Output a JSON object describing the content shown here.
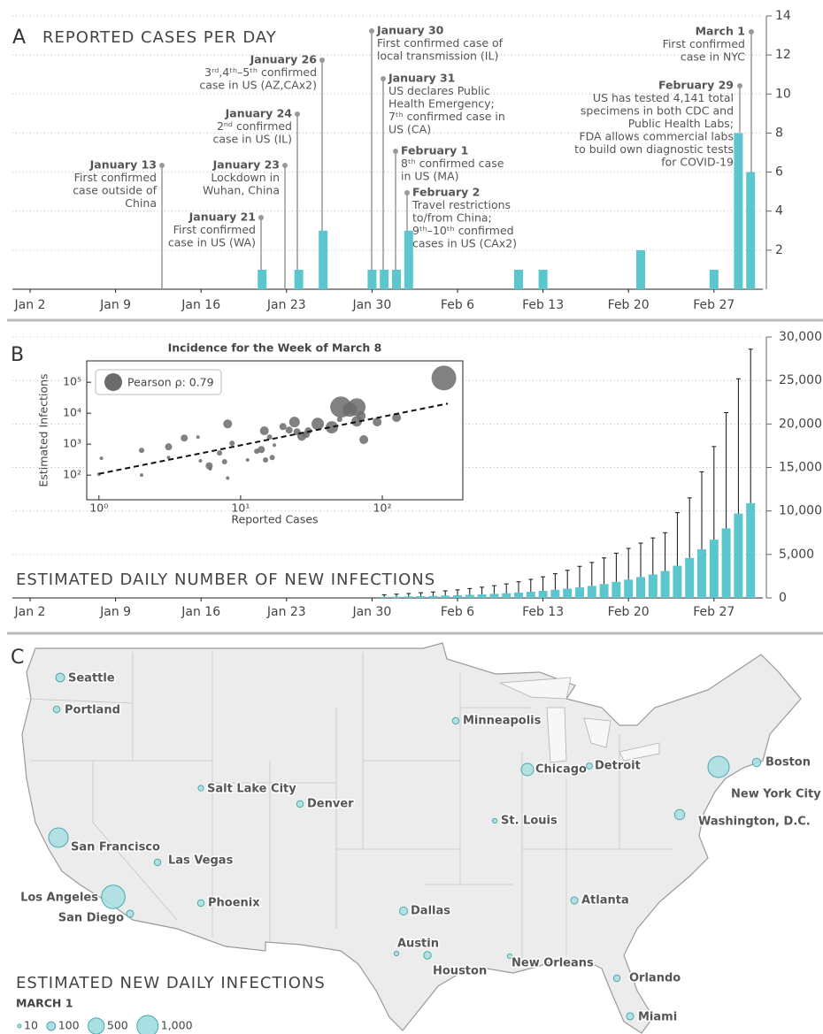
{
  "chart_data": [
    {
      "type": "bar",
      "panel": "A",
      "title": "REPORTED CASES PER DAY",
      "categories": [
        "Jan 2",
        null,
        null,
        null,
        null,
        null,
        null,
        "Jan 9",
        null,
        null,
        null,
        null,
        null,
        null,
        "Jan 16",
        null,
        null,
        null,
        null,
        null,
        null,
        "Jan 23",
        null,
        null,
        null,
        null,
        null,
        null,
        "Jan 30",
        null,
        null,
        null,
        null,
        null,
        null,
        "Feb 6",
        null,
        null,
        null,
        null,
        null,
        null,
        "Feb 13",
        null,
        null,
        null,
        null,
        null,
        null,
        "Feb 20",
        null,
        null,
        null,
        null,
        null,
        null,
        "Feb 27",
        null,
        null,
        null
      ],
      "values": [
        0,
        0,
        0,
        0,
        0,
        0,
        0,
        0,
        0,
        0,
        0,
        0,
        0,
        0,
        0,
        0,
        0,
        0,
        0,
        1,
        0,
        0,
        1,
        0,
        3,
        0,
        0,
        0,
        1,
        1,
        1,
        3,
        0,
        0,
        0,
        0,
        0,
        0,
        0,
        0,
        1,
        0,
        1,
        0,
        0,
        0,
        0,
        0,
        0,
        0,
        2,
        0,
        0,
        0,
        0,
        0,
        1,
        0,
        8,
        6
      ],
      "color": "#5cc6cf",
      "ylim": [
        0,
        14
      ],
      "yticks": [
        2,
        4,
        6,
        8,
        10,
        12,
        14
      ],
      "grid": true,
      "annotations": [
        {
          "title": "January 13",
          "lines": [
            "First confirmed",
            "case outside of",
            "China"
          ]
        },
        {
          "title": "January 21",
          "lines": [
            "First confirmed",
            "case in US (WA)"
          ]
        },
        {
          "title": "January 23",
          "lines": [
            "Lockdown in",
            "Wuhan, China"
          ]
        },
        {
          "title": "January 24",
          "lines": [
            "2ⁿᵈ confirmed",
            "case in US (IL)"
          ]
        },
        {
          "title": "January 26",
          "lines": [
            "3ʳᵈ,4ᵗʰ–5ᵗʰ confirmed",
            "case in US (AZ,CAx2)"
          ]
        },
        {
          "title": "January 30",
          "lines": [
            "First confirmed case of",
            "local transmission (IL)"
          ]
        },
        {
          "title": "January 31",
          "lines": [
            "US declares Public",
            "Health Emergency;",
            "7ᵗʰ confirmed case in",
            "US (CA)"
          ]
        },
        {
          "title": "February 1",
          "lines": [
            "8ᵗʰ confirmed case",
            "in US (MA)"
          ]
        },
        {
          "title": "February 2",
          "lines": [
            "Travel restrictions",
            "to/from China;",
            "9ᵗʰ–10ᵗʰ confirmed",
            "cases in US (CAx2)"
          ]
        },
        {
          "title": "March 1",
          "lines": [
            "First confirmed",
            "case in NYC"
          ]
        },
        {
          "title": "February 29",
          "lines": [
            "US has tested 4,141 total",
            "specimens in both CDC and",
            "Public Health Labs;",
            "FDA allows commercial labs",
            "to build own diagnostic tests",
            "for COVID-19"
          ]
        }
      ]
    },
    {
      "type": "bar",
      "panel": "B",
      "title": "ESTIMATED DAILY NUMBER OF NEW INFECTIONS",
      "categories": [
        "Jan 2",
        null,
        null,
        null,
        null,
        null,
        null,
        "Jan 9",
        null,
        null,
        null,
        null,
        null,
        null,
        "Jan 16",
        null,
        null,
        null,
        null,
        null,
        null,
        "Jan 23",
        null,
        null,
        null,
        null,
        null,
        null,
        "Jan 30",
        null,
        null,
        null,
        null,
        null,
        null,
        "Feb 6",
        null,
        null,
        null,
        null,
        null,
        null,
        "Feb 13",
        null,
        null,
        null,
        null,
        null,
        null,
        "Feb 20",
        null,
        null,
        null,
        null,
        null,
        null,
        "Feb 27",
        null,
        null,
        null
      ],
      "values": [
        null,
        null,
        null,
        null,
        null,
        null,
        null,
        null,
        null,
        null,
        null,
        null,
        null,
        null,
        null,
        null,
        null,
        null,
        null,
        null,
        null,
        null,
        null,
        null,
        null,
        null,
        null,
        null,
        null,
        120,
        140,
        170,
        200,
        230,
        270,
        310,
        360,
        410,
        470,
        540,
        620,
        710,
        810,
        930,
        1060,
        1210,
        1380,
        1600,
        1850,
        2100,
        2400,
        2700,
        3100,
        3700,
        4600,
        5600,
        6700,
        8000,
        9700,
        10900
      ],
      "errors": [
        null,
        null,
        null,
        null,
        null,
        null,
        null,
        null,
        null,
        null,
        null,
        null,
        null,
        null,
        null,
        null,
        null,
        null,
        null,
        null,
        null,
        null,
        null,
        null,
        null,
        null,
        null,
        null,
        null,
        250,
        290,
        340,
        400,
        460,
        540,
        620,
        720,
        820,
        940,
        1080,
        1240,
        1420,
        1620,
        1860,
        2120,
        2420,
        2700,
        3000,
        3300,
        3600,
        3900,
        4200,
        4400,
        6100,
        6900,
        8900,
        10700,
        13300,
        15500,
        17700
      ],
      "color": "#5cc6cf",
      "ylim": [
        0,
        30000
      ],
      "yticks": [
        0,
        {
          "value": 5000,
          "label": "5,000"
        },
        {
          "value": 10000,
          "label": "10,000"
        },
        {
          "value": 15000,
          "label": "15,000"
        },
        {
          "value": 20000,
          "label": "20,000"
        },
        {
          "value": 25000,
          "label": "25,000"
        },
        {
          "value": 30000,
          "label": "30,000"
        }
      ],
      "grid": true
    },
    {
      "type": "scatter",
      "title": "Incidence for the Week of March 8",
      "x_label": "Reported Cases",
      "y_label": "Estimated Infections",
      "log_x": true,
      "log_y": true,
      "xlim": [
        0.82,
        370
      ],
      "ylim": [
        16,
        490000
      ],
      "xticks": [
        {
          "value": 1,
          "label": "10⁰"
        },
        {
          "value": 10,
          "label": "10¹"
        },
        {
          "value": 100,
          "label": "10²"
        }
      ],
      "yticks": [
        {
          "value": 100,
          "label": "10²"
        },
        {
          "value": 1000,
          "label": "10³"
        },
        {
          "value": 10000,
          "label": "10⁴"
        },
        {
          "value": 100000,
          "label": "10⁵"
        }
      ],
      "x": [
        1.04,
        1,
        2,
        2,
        3.1,
        3.1,
        4,
        5,
        5.2,
        6,
        6.1,
        7.1,
        7.7,
        8.1,
        8.1,
        8.7,
        11.2,
        13,
        14,
        14.7,
        15,
        16,
        16.7,
        17.3,
        19.9,
        22,
        24,
        25,
        27,
        29,
        30,
        35,
        44,
        50,
        51,
        59,
        66,
        66,
        71,
        74,
        92,
        126,
        272
      ],
      "y": [
        350,
        107,
        630,
        100,
        820,
        370,
        1580,
        1700,
        290,
        200,
        160,
        520,
        270,
        4500,
        80,
        1070,
        310,
        590,
        670,
        2700,
        310,
        1700,
        370,
        930,
        3700,
        2850,
        5200,
        2500,
        1800,
        2050,
        2700,
        4500,
        3500,
        6300,
        15800,
        13000,
        15800,
        5500,
        8200,
        1400,
        5200,
        7200,
        137000
      ],
      "sizes": [
        2,
        2,
        3,
        2,
        4,
        2,
        4,
        2,
        2,
        4,
        2,
        3,
        3,
        5,
        2,
        3,
        2,
        3,
        4,
        5,
        3,
        3,
        3,
        2,
        4,
        4,
        6,
        4,
        5,
        4,
        4,
        7,
        7,
        3,
        12,
        8,
        10,
        6,
        5,
        5,
        5,
        5,
        14
      ],
      "color": "#6b6b6b",
      "legend_label": "Pearson ρ: 0.79",
      "legend_position": "upper left",
      "trend": {
        "x": [
          1,
          290
        ],
        "y": [
          110,
          20500
        ]
      }
    },
    {
      "type": "bubble-map",
      "panel": "C",
      "title": "ESTIMATED NEW DAILY INFECTIONS",
      "subtitle": "MARCH 1",
      "color": "#a9dfe2",
      "cities": [
        "Seattle",
        "Portland",
        "Minneapolis",
        "Chicago",
        "Detroit",
        "Boston",
        "New York City",
        "Washington, D.C.",
        "Salt Lake City",
        "Denver",
        "St. Louis",
        "San Francisco",
        "Las Vegas",
        "Los Angeles",
        "San Diego",
        "Phoenix",
        "Dallas",
        "Atlanta",
        "Austin",
        "Houston",
        "New Orleans",
        "Orlando",
        "Miami"
      ],
      "values": [
        100,
        50,
        50,
        250,
        40,
        90,
        1000,
        150,
        30,
        50,
        20,
        800,
        50,
        1300,
        60,
        50,
        80,
        60,
        20,
        70,
        20,
        50,
        60
      ],
      "legend_sizes": [
        10,
        100,
        500,
        {
          "value": 1000,
          "label": "1,000"
        }
      ]
    }
  ]
}
